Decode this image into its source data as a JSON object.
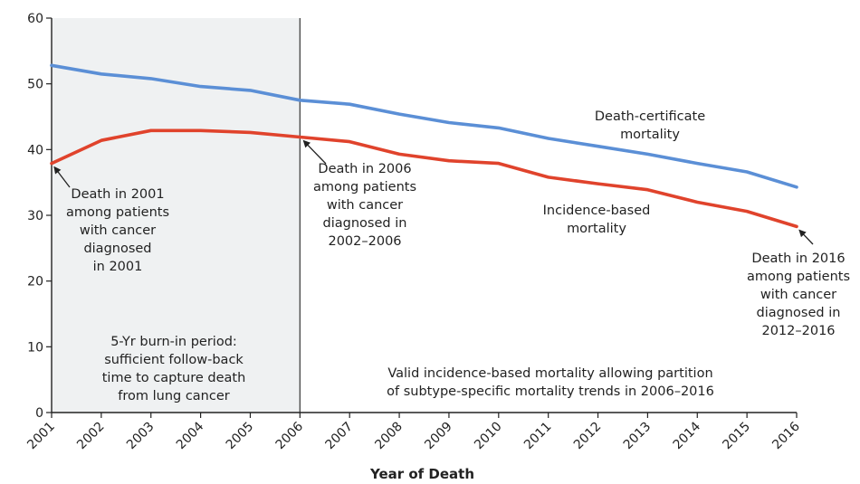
{
  "chart_data": {
    "type": "line",
    "title": "",
    "xlabel": "Year of Death",
    "ylabel": "",
    "xlim": [
      2001,
      2016
    ],
    "ylim": [
      0,
      60
    ],
    "x": [
      2001,
      2002,
      2003,
      2004,
      2005,
      2006,
      2007,
      2008,
      2009,
      2010,
      2011,
      2012,
      2013,
      2014,
      2015,
      2016
    ],
    "yticks": [
      0,
      10,
      20,
      30,
      40,
      50,
      60
    ],
    "grid": false,
    "series": [
      {
        "name": "Death-certificate mortality",
        "color": "#5b8fd6",
        "values": [
          52.8,
          51.5,
          50.8,
          49.6,
          49.0,
          47.5,
          46.9,
          45.4,
          44.1,
          43.3,
          41.7,
          40.5,
          39.3,
          37.9,
          36.6,
          34.3
        ]
      },
      {
        "name": "Incidence-based mortality",
        "color": "#e0432c",
        "values": [
          37.9,
          41.4,
          42.9,
          42.9,
          42.6,
          41.9,
          41.2,
          39.3,
          38.3,
          37.9,
          35.8,
          34.8,
          33.9,
          32.0,
          30.6,
          28.3
        ]
      }
    ],
    "shaded_region": {
      "x_start": 2001,
      "x_end": 2006,
      "color": "#eff1f2"
    },
    "annotations": {
      "dc_label": [
        "Death-certificate",
        "mortality"
      ],
      "ib_label": [
        "Incidence-based",
        "mortality"
      ],
      "death_2001": [
        "Death in 2001",
        "among patients",
        "with cancer",
        "diagnosed",
        "in 2001"
      ],
      "death_2006": [
        "Death in 2006",
        "among patients",
        "with cancer",
        "diagnosed in",
        "2002–2006"
      ],
      "death_2016": [
        "Death in 2016",
        "among patients",
        "with cancer",
        "diagnosed in",
        "2012–2016"
      ],
      "burn_in": [
        "5-Yr burn-in period:",
        "sufficient follow-back",
        "time to capture death",
        "from lung cancer"
      ],
      "valid": [
        "Valid incidence-based mortality allowing partition",
        "of subtype-specific mortality trends in 2006–2016"
      ]
    }
  }
}
